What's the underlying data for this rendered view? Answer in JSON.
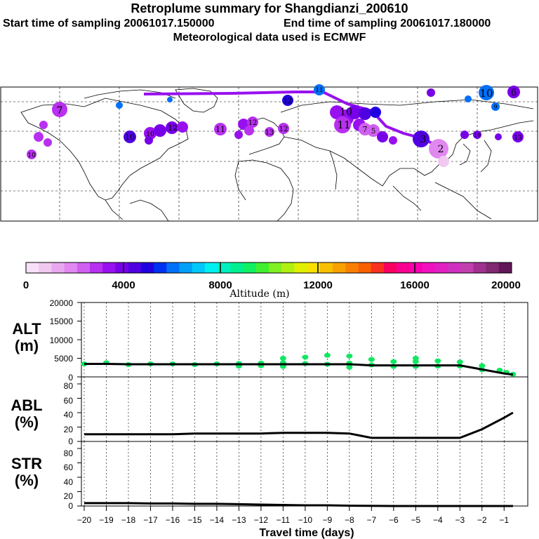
{
  "header": {
    "title": "Retroplume summary for Shangdianzi_200610",
    "start_label": "Start time of sampling 20061017.150000",
    "end_label": "End time of sampling 20061017.180000",
    "met_label": "Meteorological data used is ECMWF"
  },
  "colorbar": {
    "label": "Altitude (m)",
    "ticks": [
      "0",
      "4000",
      "8000",
      "12000",
      "16000",
      "20000"
    ],
    "colors": [
      "#f8e0f8",
      "#f0c8f0",
      "#e8a8f0",
      "#e088f0",
      "#d060f0",
      "#b830f0",
      "#9810f0",
      "#7800e8",
      "#5000e0",
      "#2000e0",
      "#0030f0",
      "#0070f8",
      "#00a0f8",
      "#00c8f8",
      "#00f0f0",
      "#00f0c0",
      "#00f090",
      "#10f060",
      "#40f030",
      "#80f020",
      "#b0f010",
      "#e0f000",
      "#f8e000",
      "#f8c000",
      "#f8a000",
      "#f88000",
      "#f86000",
      "#f83020",
      "#f80060",
      "#f80090",
      "#f800b0",
      "#f010c0",
      "#e020c0",
      "#d030c0",
      "#c040b0",
      "#a03090",
      "#802870",
      "#601858"
    ]
  },
  "map": {
    "labels": [
      {
        "text": "7",
        "color": "#b830f0"
      },
      {
        "text": "10",
        "color": "#0070f8"
      },
      {
        "text": "6",
        "color": "#7800e8"
      },
      {
        "text": "11",
        "color": "#0070f8"
      },
      {
        "text": "12",
        "color": "#2000e0"
      },
      {
        "text": "11",
        "color": "#b830f0"
      },
      {
        "text": "10",
        "color": "#9810f0"
      },
      {
        "text": "10",
        "color": "#5000e0"
      },
      {
        "text": "12",
        "color": "#7800e8"
      },
      {
        "text": "13",
        "color": "#b830f0"
      },
      {
        "text": "12",
        "color": "#9810f0"
      },
      {
        "text": "12",
        "color": "#b830f0"
      },
      {
        "text": "11",
        "color": "#9810f0"
      },
      {
        "text": "10",
        "color": "#9810f0"
      },
      {
        "text": "9",
        "color": "#0030f0"
      },
      {
        "text": "7",
        "color": "#d060f0"
      },
      {
        "text": "5",
        "color": "#d060f0"
      },
      {
        "text": "3",
        "color": "#5000e0"
      },
      {
        "text": "2",
        "color": "#e088f0"
      },
      {
        "text": "13",
        "color": "#7800e8"
      },
      {
        "text": "19",
        "color": "#7800e8"
      },
      {
        "text": "10",
        "color": "#d060f0"
      }
    ]
  },
  "panels": {
    "alt": {
      "label1": "ALT",
      "label2": "(m)",
      "yticks": [
        "20000",
        "15000",
        "10000",
        "5000",
        "0"
      ]
    },
    "abl": {
      "label1": "ABL",
      "label2": "(%)",
      "yticks": [
        "80",
        "60",
        "40",
        "20",
        "0"
      ]
    },
    "str": {
      "label1": "STR",
      "label2": "(%)",
      "yticks": [
        "80",
        "60",
        "40",
        "20",
        "0"
      ]
    }
  },
  "chart_data": {
    "type": "line",
    "title": "Retroplume summary for Shangdianzi_200610",
    "xlabel": "Travel time (days)",
    "xlim": [
      -20,
      -0.5
    ],
    "xticks": [
      -20,
      -19,
      -18,
      -17,
      -16,
      -15,
      -14,
      -13,
      -12,
      -11,
      -10,
      -9,
      -8,
      -7,
      -6,
      -5,
      -4,
      -3,
      -2,
      -1
    ],
    "series": [
      {
        "name": "ALT (m)",
        "ylim": [
          0,
          20000
        ],
        "x": [
          -20,
          -19,
          -18,
          -17,
          -16,
          -15,
          -14,
          -13,
          -12,
          -11,
          -10,
          -9,
          -8,
          -7,
          -6,
          -5,
          -4,
          -3,
          -2,
          -1,
          -0.6
        ],
        "values": [
          3500,
          3500,
          3400,
          3400,
          3400,
          3400,
          3400,
          3400,
          3400,
          3400,
          3400,
          3400,
          3400,
          3100,
          3100,
          3100,
          3100,
          3100,
          2000,
          900,
          600
        ],
        "scatter_x": [
          -20,
          -19,
          -18,
          -17,
          -16,
          -15,
          -14,
          -13,
          -13,
          -12,
          -12,
          -11,
          -11,
          -11,
          -10,
          -10,
          -9,
          -9,
          -8,
          -8,
          -8,
          -7,
          -7,
          -6,
          -6,
          -5,
          -5,
          -5,
          -4,
          -4,
          -3,
          -3,
          -2,
          -2,
          -1.2,
          -0.9,
          -0.6
        ],
        "scatter_y": [
          3500,
          3800,
          3300,
          3500,
          3500,
          3300,
          3500,
          3600,
          2900,
          3700,
          3000,
          5000,
          3800,
          2800,
          5300,
          3600,
          5800,
          3400,
          5600,
          3700,
          2600,
          4700,
          3200,
          4100,
          2800,
          5000,
          4100,
          2800,
          4300,
          2900,
          4000,
          2900,
          3000,
          1900,
          1800,
          1200,
          700
        ]
      },
      {
        "name": "ABL (%)",
        "ylim": [
          0,
          90
        ],
        "x": [
          -20,
          -19,
          -18,
          -17,
          -16,
          -15,
          -14,
          -13,
          -12,
          -11,
          -10,
          -9,
          -8,
          -7,
          -6,
          -5,
          -4,
          -3,
          -2,
          -1,
          -0.6
        ],
        "values": [
          10,
          10,
          10,
          10,
          10,
          11,
          11,
          11,
          11,
          12,
          12,
          12,
          11,
          5,
          5,
          5,
          5,
          5,
          17,
          33,
          40
        ]
      },
      {
        "name": "STR (%)",
        "ylim": [
          0,
          90
        ],
        "x": [
          -20,
          -19,
          -18,
          -17,
          -16,
          -15,
          -14,
          -13,
          -12,
          -11,
          -10,
          -9,
          -8,
          -7,
          -6,
          -5,
          -4,
          -3,
          -2,
          -1,
          -0.6
        ],
        "values": [
          4,
          4,
          4,
          3.5,
          3.5,
          3,
          3,
          2.5,
          2,
          1.5,
          1,
          1,
          0.5,
          0.3,
          0,
          0,
          0,
          0,
          0,
          0,
          0
        ]
      }
    ]
  }
}
